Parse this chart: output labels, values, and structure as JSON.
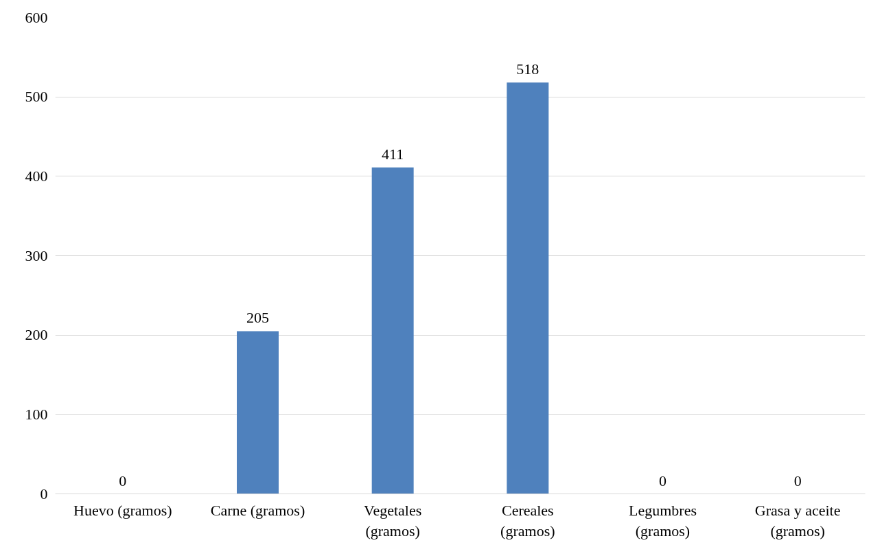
{
  "chart_data": {
    "type": "bar",
    "categories": [
      "Huevo (gramos)",
      "Carne (gramos)",
      "Vegetales (gramos)",
      "Cereales (gramos)",
      "Legumbres (gramos)",
      "Grasa y aceite (gramos)"
    ],
    "values": [
      0,
      205,
      411,
      518,
      0,
      0
    ],
    "color": "#4f81bd",
    "ylim": [
      0,
      600
    ],
    "yticks": [
      0,
      100,
      200,
      300,
      400,
      500,
      600
    ],
    "grid": "y",
    "data_labels": true
  }
}
